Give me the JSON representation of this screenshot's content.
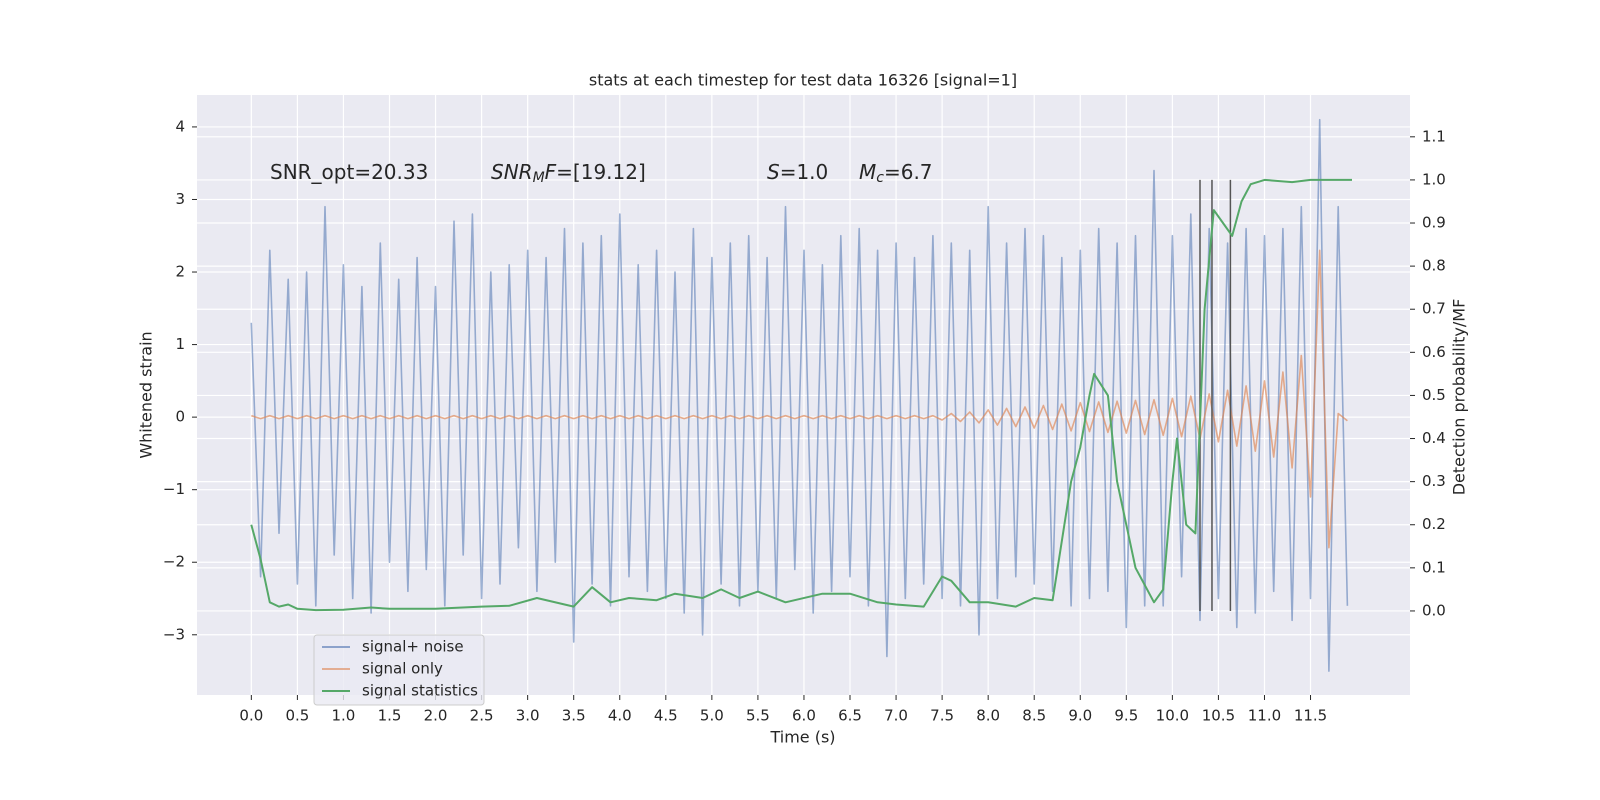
{
  "chart_data": {
    "type": "line",
    "title": "stats at each timestep for test data 16326 [signal=1]",
    "x_label": "Time (s)",
    "y_label": "Whitened strain",
    "y2_label": "Detection probability/MF",
    "annotations": [
      [
        {
          "text": "SNR_opt=20.33"
        }
      ],
      [
        {
          "text": "SNR",
          "style": "italic"
        },
        {
          "text": "M",
          "style": "italic-sub"
        },
        {
          "text": "F",
          "style": "italic"
        },
        {
          "text": "=[19.12]"
        }
      ],
      [
        {
          "text": "S",
          "style": "italic"
        },
        {
          "text": "=1.0"
        }
      ],
      [
        {
          "text": "M",
          "style": "italic"
        },
        {
          "text": "c",
          "style": "italic-sub"
        },
        {
          "text": "=6.7"
        }
      ]
    ],
    "grid": true,
    "legend": "lower left",
    "xlim": [
      -0.59,
      12.58
    ],
    "ylim": [
      -3.83,
      4.44
    ],
    "y2lim": [
      -0.195,
      1.197
    ],
    "xticks": [
      {
        "value": 0,
        "label": "0.0"
      },
      0.5,
      {
        "value": 1,
        "label": "1.0"
      },
      1.5,
      {
        "value": 2,
        "label": "2.0"
      },
      2.5,
      {
        "value": 3,
        "label": "3.0"
      },
      3.5,
      {
        "value": 4,
        "label": "4.0"
      },
      4.5,
      {
        "value": 5,
        "label": "5.0"
      },
      5.5,
      {
        "value": 6,
        "label": "6.0"
      },
      6.5,
      {
        "value": 7,
        "label": "7.0"
      },
      7.5,
      {
        "value": 8,
        "label": "8.0"
      },
      8.5,
      {
        "value": 9,
        "label": "9.0"
      },
      9.5,
      {
        "value": 10,
        "label": "10.0"
      },
      10.5,
      {
        "value": 11,
        "label": "11.0"
      },
      11.5
    ],
    "yticks": [
      {
        "value": -3,
        "label": "−3"
      },
      {
        "value": -2,
        "label": "−2"
      },
      {
        "value": -1,
        "label": "−1"
      },
      0,
      1,
      2,
      3,
      4
    ],
    "y2ticks": [
      {
        "value": 0,
        "label": "0.0"
      },
      0.1,
      0.2,
      0.3,
      0.4,
      0.5,
      0.6,
      0.7,
      0.8,
      0.9,
      {
        "value": 1,
        "label": "1.0"
      },
      1.1
    ],
    "vlines": [
      10.3,
      10.43,
      10.63
    ],
    "vline_range": [
      0,
      1.0
    ],
    "vline_color": "#555555",
    "x": [
      0,
      0.1,
      0.2,
      0.3,
      0.4,
      0.5,
      0.6,
      0.7,
      0.8,
      0.9,
      1,
      1.1,
      1.2,
      1.3,
      1.4,
      1.5,
      1.6,
      1.7,
      1.8,
      1.9,
      2,
      2.1,
      2.2,
      2.3,
      2.4,
      2.5,
      2.6,
      2.7,
      2.8,
      2.9,
      3,
      3.1,
      3.2,
      3.3,
      3.4,
      3.5,
      3.6,
      3.7,
      3.8,
      3.9,
      4,
      4.1,
      4.2,
      4.3,
      4.4,
      4.5,
      4.6,
      4.7,
      4.8,
      4.9,
      5,
      5.1,
      5.2,
      5.3,
      5.4,
      5.5,
      5.6,
      5.7,
      5.8,
      5.9,
      6,
      6.1,
      6.2,
      6.3,
      6.4,
      6.5,
      6.6,
      6.7,
      6.8,
      6.9,
      7,
      7.1,
      7.2,
      7.3,
      7.4,
      7.5,
      7.6,
      7.7,
      7.8,
      7.9,
      8,
      8.1,
      8.2,
      8.3,
      8.4,
      8.5,
      8.6,
      8.7,
      8.8,
      8.9,
      9,
      9.1,
      9.2,
      9.3,
      9.4,
      9.5,
      9.6,
      9.7,
      9.8,
      9.9,
      10,
      10.1,
      10.2,
      10.3,
      10.4,
      10.5,
      10.6,
      10.7,
      10.8,
      10.9,
      11,
      11.1,
      11.2,
      11.3,
      11.4,
      11.5,
      11.6,
      11.7,
      11.8,
      11.9
    ],
    "series": [
      {
        "name": "signal+ noise",
        "color": "#4c72b0",
        "values": [
          1.3,
          -2.2,
          2.3,
          -1.6,
          1.9,
          -2.3,
          2.0,
          -2.6,
          2.9,
          -1.9,
          2.1,
          -2.5,
          1.8,
          -2.7,
          2.4,
          -2.0,
          1.9,
          -2.4,
          2.2,
          -2.1,
          1.8,
          -2.6,
          2.7,
          -1.9,
          2.8,
          -2.5,
          2.0,
          -2.3,
          2.1,
          -1.8,
          2.3,
          -2.4,
          2.2,
          -2.0,
          2.6,
          -3.1,
          2.4,
          -2.3,
          2.5,
          -2.6,
          2.8,
          -2.2,
          2.1,
          -2.4,
          2.3,
          -2.5,
          2.0,
          -2.7,
          2.6,
          -3.0,
          2.2,
          -2.3,
          2.4,
          -2.6,
          2.5,
          -2.4,
          2.2,
          -2.5,
          2.9,
          -2.1,
          2.3,
          -2.7,
          2.1,
          -2.4,
          2.5,
          -2.2,
          2.6,
          -2.6,
          2.3,
          -3.3,
          2.4,
          -2.5,
          2.2,
          -2.3,
          2.5,
          -2.5,
          2.4,
          -2.6,
          2.3,
          -3.0,
          2.9,
          -2.5,
          2.4,
          -2.2,
          2.6,
          -2.3,
          2.5,
          -2.4,
          2.2,
          -2.6,
          2.3,
          -2.5,
          2.6,
          -2.4,
          2.4,
          -2.9,
          2.5,
          -2.6,
          3.4,
          -2.6,
          2.5,
          -2.2,
          2.8,
          -2.8,
          2.6,
          -2.5,
          2.4,
          -2.9,
          2.6,
          -2.7,
          2.5,
          -2.4,
          2.6,
          -2.8,
          2.9,
          -2.5,
          4.1,
          -3.5,
          2.9,
          -2.6
        ]
      },
      {
        "name": "signal only",
        "color": "#dd8452",
        "values": [
          0.02,
          -0.02,
          0.02,
          -0.02,
          0.02,
          -0.02,
          0.02,
          -0.02,
          0.02,
          -0.02,
          0.02,
          -0.02,
          0.02,
          -0.02,
          0.02,
          -0.02,
          0.02,
          -0.02,
          0.02,
          -0.02,
          0.02,
          -0.02,
          0.02,
          -0.02,
          0.02,
          -0.02,
          0.02,
          -0.02,
          0.02,
          -0.02,
          0.02,
          -0.02,
          0.02,
          -0.02,
          0.02,
          -0.02,
          0.02,
          -0.02,
          0.02,
          -0.02,
          0.02,
          -0.02,
          0.02,
          -0.02,
          0.02,
          -0.02,
          0.02,
          -0.02,
          0.02,
          -0.02,
          0.02,
          -0.02,
          0.02,
          -0.02,
          0.02,
          -0.02,
          0.02,
          -0.02,
          0.02,
          -0.02,
          0.02,
          -0.02,
          0.02,
          -0.02,
          0.02,
          -0.02,
          0.02,
          -0.02,
          0.02,
          -0.02,
          0.02,
          -0.02,
          0.02,
          -0.02,
          0.02,
          -0.04,
          0.05,
          -0.06,
          0.07,
          -0.08,
          0.1,
          -0.11,
          0.12,
          -0.13,
          0.14,
          -0.15,
          0.16,
          -0.17,
          0.18,
          -0.19,
          0.2,
          -0.2,
          0.21,
          -0.21,
          0.22,
          -0.22,
          0.23,
          -0.24,
          0.24,
          -0.25,
          0.26,
          -0.27,
          0.29,
          -0.3,
          0.32,
          -0.34,
          0.37,
          -0.4,
          0.43,
          -0.47,
          0.5,
          -0.55,
          0.62,
          -0.7,
          0.85,
          -1.1,
          2.3,
          -1.8,
          0.05,
          -0.05
        ]
      },
      {
        "name": "signal statistics",
        "color": "#55a868",
        "axis": "y2",
        "x": [
          0,
          0.1,
          0.2,
          0.3,
          0.4,
          0.5,
          0.7,
          1.0,
          1.3,
          1.5,
          2.0,
          2.5,
          2.8,
          3.1,
          3.5,
          3.7,
          3.9,
          4.1,
          4.4,
          4.6,
          4.9,
          5.1,
          5.3,
          5.5,
          5.8,
          6.2,
          6.5,
          6.8,
          7.0,
          7.3,
          7.5,
          7.6,
          7.8,
          8.0,
          8.3,
          8.5,
          8.7,
          8.9,
          9.0,
          9.1,
          9.15,
          9.3,
          9.4,
          9.6,
          9.8,
          9.9,
          10.0,
          10.05,
          10.15,
          10.25,
          10.35,
          10.45,
          10.55,
          10.65,
          10.75,
          10.85,
          11.0,
          11.3,
          11.5,
          11.95
        ],
        "values": [
          0.2,
          0.12,
          0.02,
          0.01,
          0.015,
          0.005,
          0.002,
          0.003,
          0.008,
          0.005,
          0.005,
          0.01,
          0.012,
          0.03,
          0.01,
          0.055,
          0.02,
          0.03,
          0.025,
          0.04,
          0.03,
          0.05,
          0.03,
          0.045,
          0.02,
          0.04,
          0.04,
          0.02,
          0.015,
          0.01,
          0.08,
          0.07,
          0.02,
          0.02,
          0.01,
          0.03,
          0.025,
          0.3,
          0.38,
          0.5,
          0.55,
          0.5,
          0.3,
          0.1,
          0.02,
          0.05,
          0.3,
          0.4,
          0.2,
          0.18,
          0.7,
          0.93,
          0.9,
          0.87,
          0.95,
          0.99,
          1.0,
          0.995,
          1.0,
          1.0
        ]
      }
    ]
  }
}
